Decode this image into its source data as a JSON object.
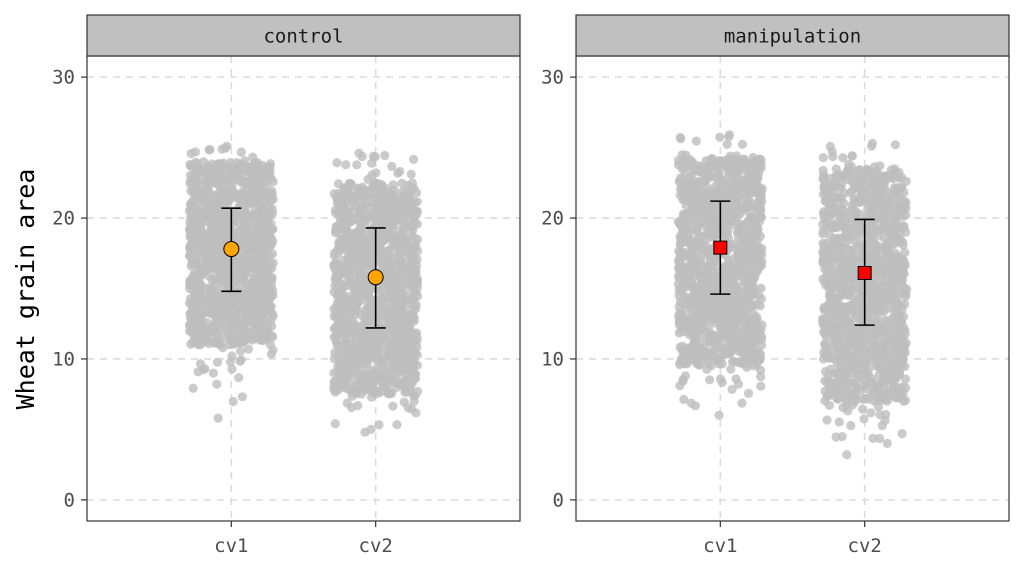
{
  "chart_data": {
    "type": "scatter",
    "subtype": "faceted jittered strip plot with mean and error bars",
    "ylabel": "Wheat grain area",
    "xlabel": "",
    "ylim": [
      -1.5,
      31.5
    ],
    "yticks": [
      0,
      10,
      20,
      30
    ],
    "grid": true,
    "grid_style": "dashed",
    "categories": [
      "cv1",
      "cv2"
    ],
    "point_color": "#BEBEBE",
    "facets": [
      {
        "label": "control",
        "marker": "circle",
        "marker_color": "#FFA500",
        "groups": [
          {
            "category": "cv1",
            "mean": 17.8,
            "lower": 14.8,
            "upper": 20.7,
            "points_min": 5.8,
            "points_max": 25.1,
            "dense_min": 11.0,
            "dense_max": 24.0
          },
          {
            "category": "cv2",
            "mean": 15.8,
            "lower": 12.2,
            "upper": 19.3,
            "points_min": 4.8,
            "points_max": 24.6,
            "dense_min": 7.5,
            "dense_max": 22.5
          }
        ]
      },
      {
        "label": "manipulation",
        "marker": "square",
        "marker_color": "#FF0000",
        "groups": [
          {
            "category": "cv1",
            "mean": 17.9,
            "lower": 14.6,
            "upper": 21.2,
            "points_min": 6.0,
            "points_max": 25.9,
            "dense_min": 9.5,
            "dense_max": 24.3
          },
          {
            "category": "cv2",
            "mean": 16.1,
            "lower": 12.4,
            "upper": 19.9,
            "points_min": 3.2,
            "points_max": 25.3,
            "dense_min": 7.0,
            "dense_max": 23.5
          }
        ]
      }
    ]
  }
}
